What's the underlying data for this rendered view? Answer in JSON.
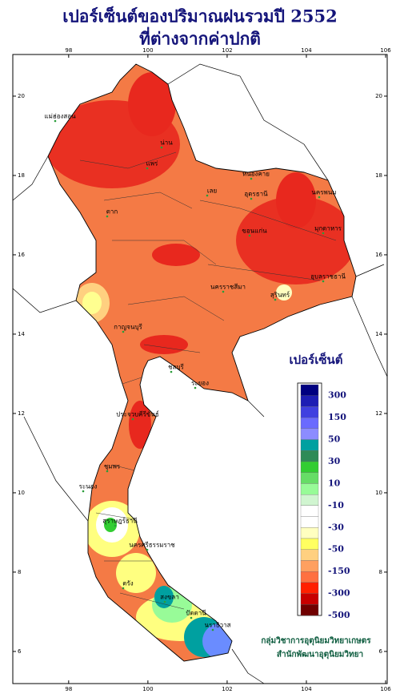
{
  "header": {
    "title_line1": "เปอร์เซ็นต์ของปริมาณฝนรวมปี 2552",
    "title_line2": "ที่ต่างจากค่าปกติ"
  },
  "map": {
    "lon_range": [
      96.59,
      106.04
    ],
    "lat_range": [
      21.05,
      5.19
    ],
    "lon_ticks": [
      98,
      100,
      102,
      104,
      106
    ],
    "lat_ticks": [
      20,
      18,
      16,
      14,
      12,
      10,
      8,
      6
    ],
    "provinces": [
      "แม่ฮ่องสอน",
      "น่าน",
      "แพร่",
      "ตาก",
      "เลย",
      "หนองคาย",
      "อุดรธานี",
      "นครพนม",
      "มุกดาหาร",
      "ขอนแก่น",
      "นครราชสีมา",
      "สุรินทร์",
      "อุบลราชธานี",
      "กาญจนบุรี",
      "ชลบุรี",
      "ระยอง",
      "ประจวบคีรีขันธ์",
      "ชุมพร",
      "ระนอง",
      "สุราษฎร์ธานี",
      "นครศรีธรรมราช",
      "ตรัง",
      "สงขลา",
      "ปัตตานี",
      "นราธิวาส"
    ]
  },
  "legend": {
    "title": "เปอร์เซ็นต์",
    "labels": [
      300,
      150,
      50,
      30,
      10,
      -10,
      -30,
      -50,
      -150,
      -300,
      -500
    ],
    "colors": [
      "#000080",
      "#1e1eb4",
      "#4040e0",
      "#6a6aff",
      "#8c8cff",
      "#00a0a0",
      "#2e8b57",
      "#32cd32",
      "#66dd66",
      "#98fb98",
      "#d0f5d0",
      "#ffffff",
      "#ffffff",
      "#ffffc0",
      "#ffff60",
      "#ffd080",
      "#ffa060",
      "#ff7040",
      "#ff2000",
      "#c80000",
      "#700000"
    ]
  },
  "footer": {
    "line1": "กลุ่มวิชาการอุตุนิยมวิทยาเกษตร",
    "line2": "สำนักพัฒนาอุตุนิยมวิทยา"
  }
}
